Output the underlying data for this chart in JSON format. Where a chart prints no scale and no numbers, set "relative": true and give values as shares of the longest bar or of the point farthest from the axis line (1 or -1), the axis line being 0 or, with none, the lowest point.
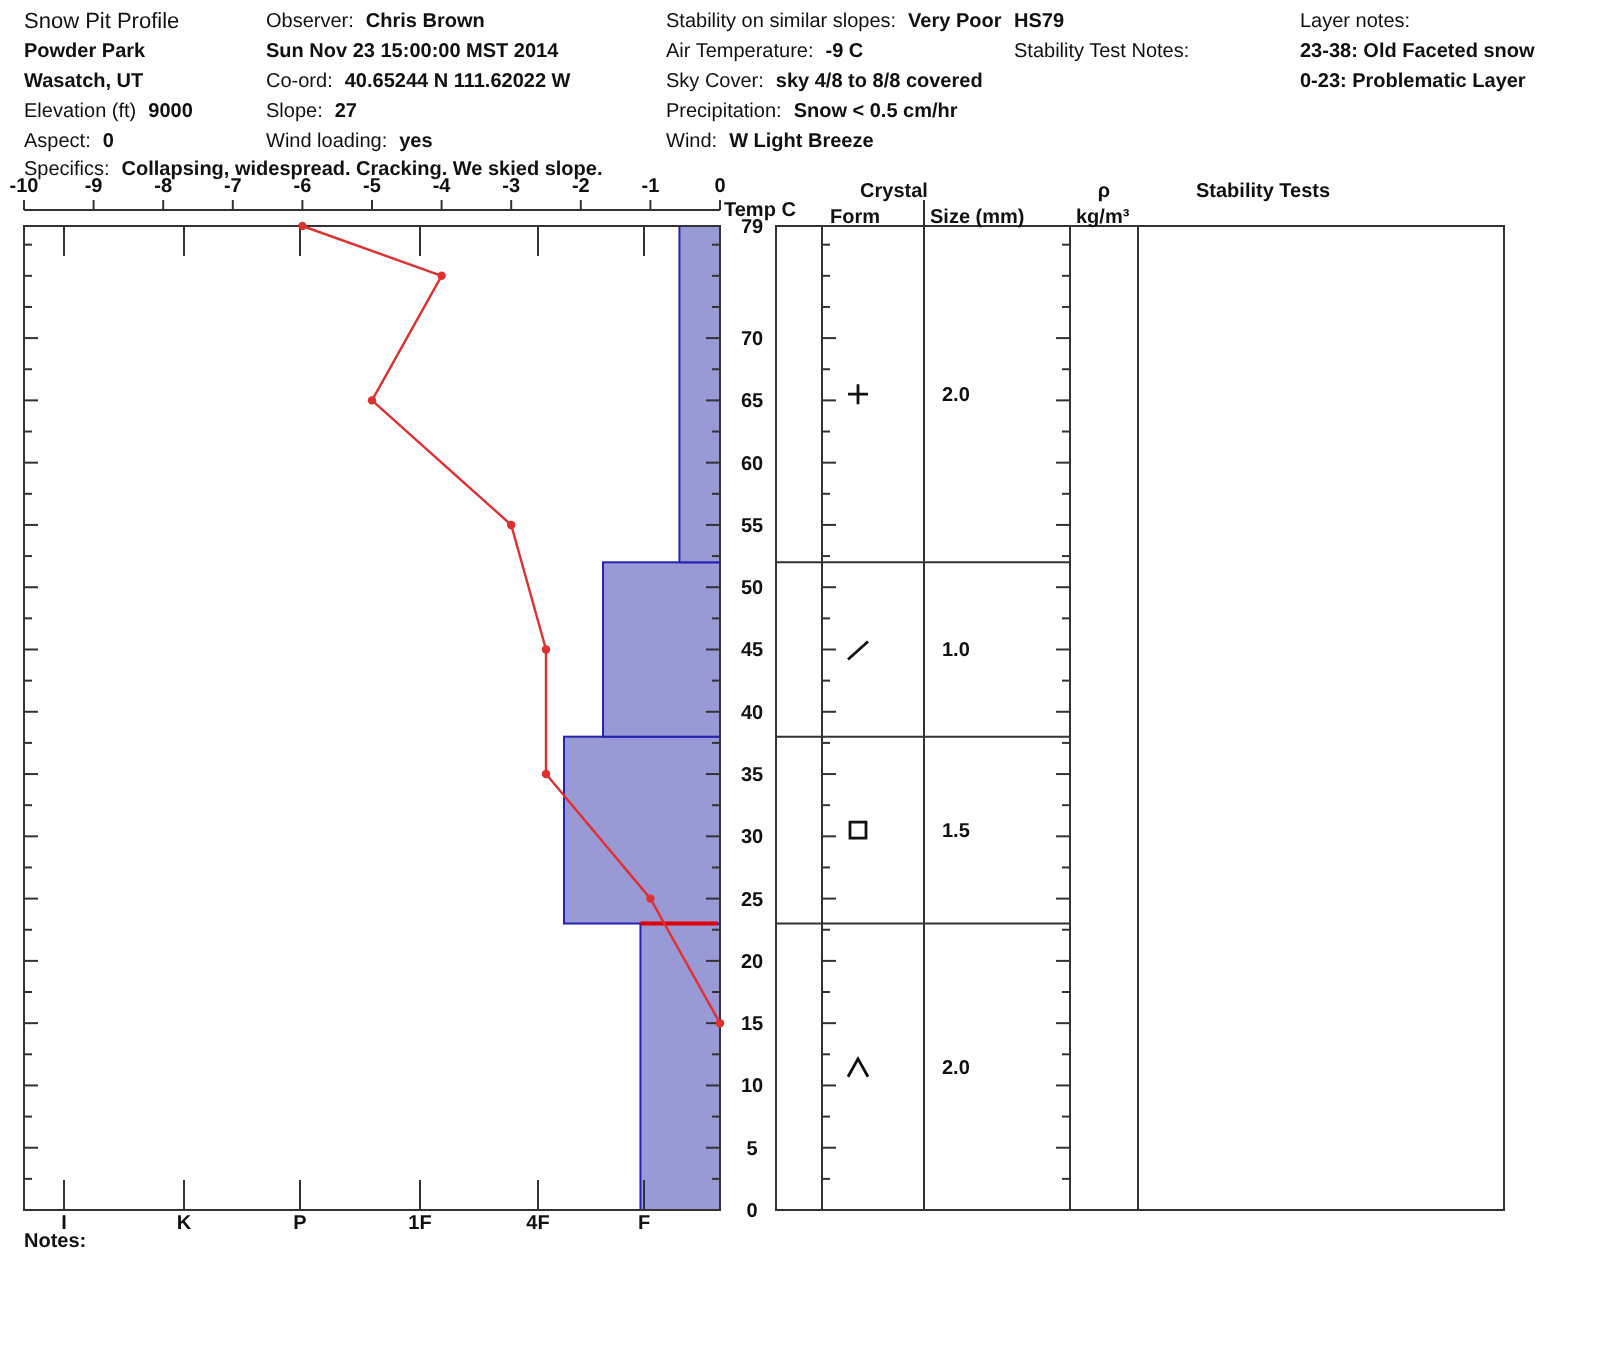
{
  "chart_data": [
    {
      "type": "line",
      "title": "Snow Pit Profile",
      "xlabel": "Temp C",
      "xlim": [
        -10,
        0
      ],
      "xticks": [
        -10,
        -9,
        -8,
        -7,
        -6,
        -5,
        -4,
        -3,
        -2,
        -1,
        0
      ],
      "ylim": [
        0,
        79
      ],
      "yticks": [
        0,
        {
          "value": 2.5,
          "label": null
        },
        5,
        {
          "value": 7.5,
          "label": null
        },
        10,
        {
          "value": 12.5,
          "label": null
        },
        15,
        {
          "value": 17.5,
          "label": null
        },
        20,
        {
          "value": 22.5,
          "label": null
        },
        25,
        {
          "value": 27.5,
          "label": null
        },
        30,
        {
          "value": 32.5,
          "label": null
        },
        35,
        {
          "value": 37.5,
          "label": null
        },
        40,
        {
          "value": 42.5,
          "label": null
        },
        45,
        {
          "value": 47.5,
          "label": null
        },
        50,
        {
          "value": 52.5,
          "label": null
        },
        55,
        {
          "value": 57.5,
          "label": null
        },
        60,
        {
          "value": 62.5,
          "label": null
        },
        65,
        {
          "value": 67.5,
          "label": null
        },
        70,
        {
          "value": 72.5,
          "label": null
        },
        {
          "value": 75,
          "label": null
        },
        {
          "value": 77.5,
          "label": null
        },
        79
      ],
      "x": [
        -6,
        -4,
        -5,
        -3,
        -2.5,
        -2.5,
        -1,
        0
      ],
      "values": [
        79,
        75,
        65,
        55,
        45,
        35,
        25,
        15
      ],
      "color": "#e03030",
      "marker": "circle",
      "annotations": [
        "Powder Park",
        "Wasatch, UT",
        "Elevation (ft)",
        "9000",
        "Aspect:",
        "0",
        "Observer:",
        "Chris Brown",
        "Sun Nov 23 15:00:00 MST 2014",
        "Co-ord:",
        "40.65244 N 111.62022 W",
        "Slope:",
        "27",
        "Wind loading:",
        "yes",
        "Stability on similar slopes:",
        "Very Poor",
        "Air Temperature:",
        "-9 C",
        "Sky Cover:",
        "sky 4/8 to 8/8 covered",
        "Precipitation:",
        "Snow < 0.5 cm/hr",
        "Wind:",
        "W Light Breeze",
        "HS79",
        "Stability Test Notes:",
        "Layer notes:",
        "23-38: Old Faceted snow",
        "0-23: Problematic Layer",
        "Specifics:",
        "Collapsing, widespread. Cracking. We skied slope.",
        "Notes:",
        "Crystal",
        "Form",
        "Size (mm)",
        "ρ",
        "kg/m³",
        "Stability Tests",
        "2.0",
        "1.0",
        "1.5",
        "2.0"
      ]
    },
    {
      "type": "bar",
      "orientation": "horizontal",
      "relative": true,
      "ylim": [
        0,
        79
      ],
      "x": [
        11.5,
        30.5,
        45,
        65.5
      ],
      "values": [
        0.51,
        1,
        0.75,
        0.26
      ],
      "color": "#9999d6",
      "ref_lines": [
        {
          "axis": "y",
          "value": 23,
          "color": "#e00000"
        }
      ],
      "annotations": [
        "I",
        "K",
        "P",
        "1F",
        "4F",
        "F"
      ]
    }
  ]
}
